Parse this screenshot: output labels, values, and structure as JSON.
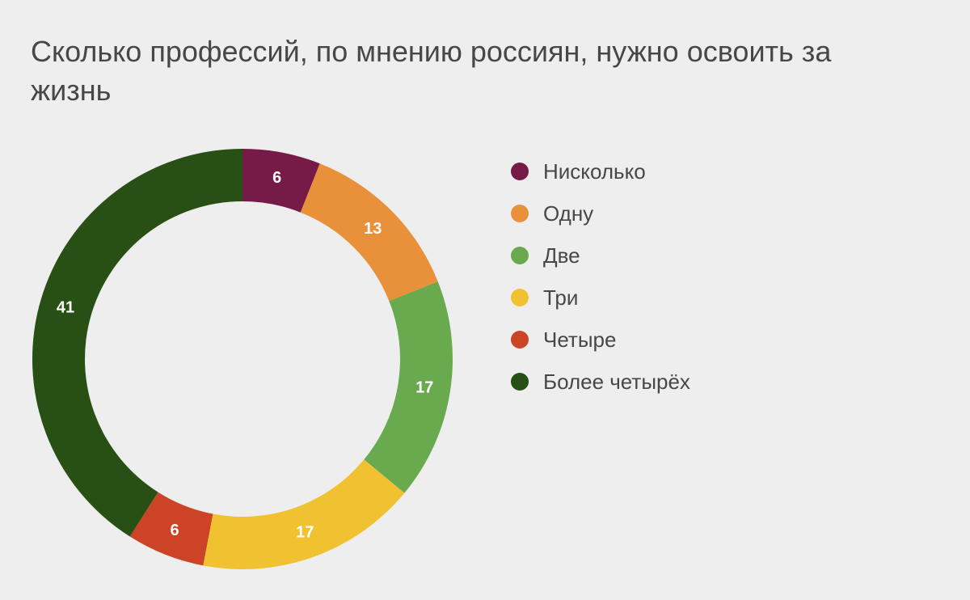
{
  "chart_data": {
    "type": "pie",
    "title": "Сколько профессий, по мнению россиян, нужно освоить за жизнь",
    "categories": [
      "Нисколько",
      "Одну",
      "Две",
      "Три",
      "Четыре",
      "Более четырёх"
    ],
    "values": [
      6,
      13,
      17,
      17,
      6,
      41
    ],
    "colors": [
      "#761b47",
      "#e8913a",
      "#6aaa4f",
      "#f0c232",
      "#cc4325",
      "#284f14"
    ],
    "hole": true,
    "legend_position": "right"
  }
}
